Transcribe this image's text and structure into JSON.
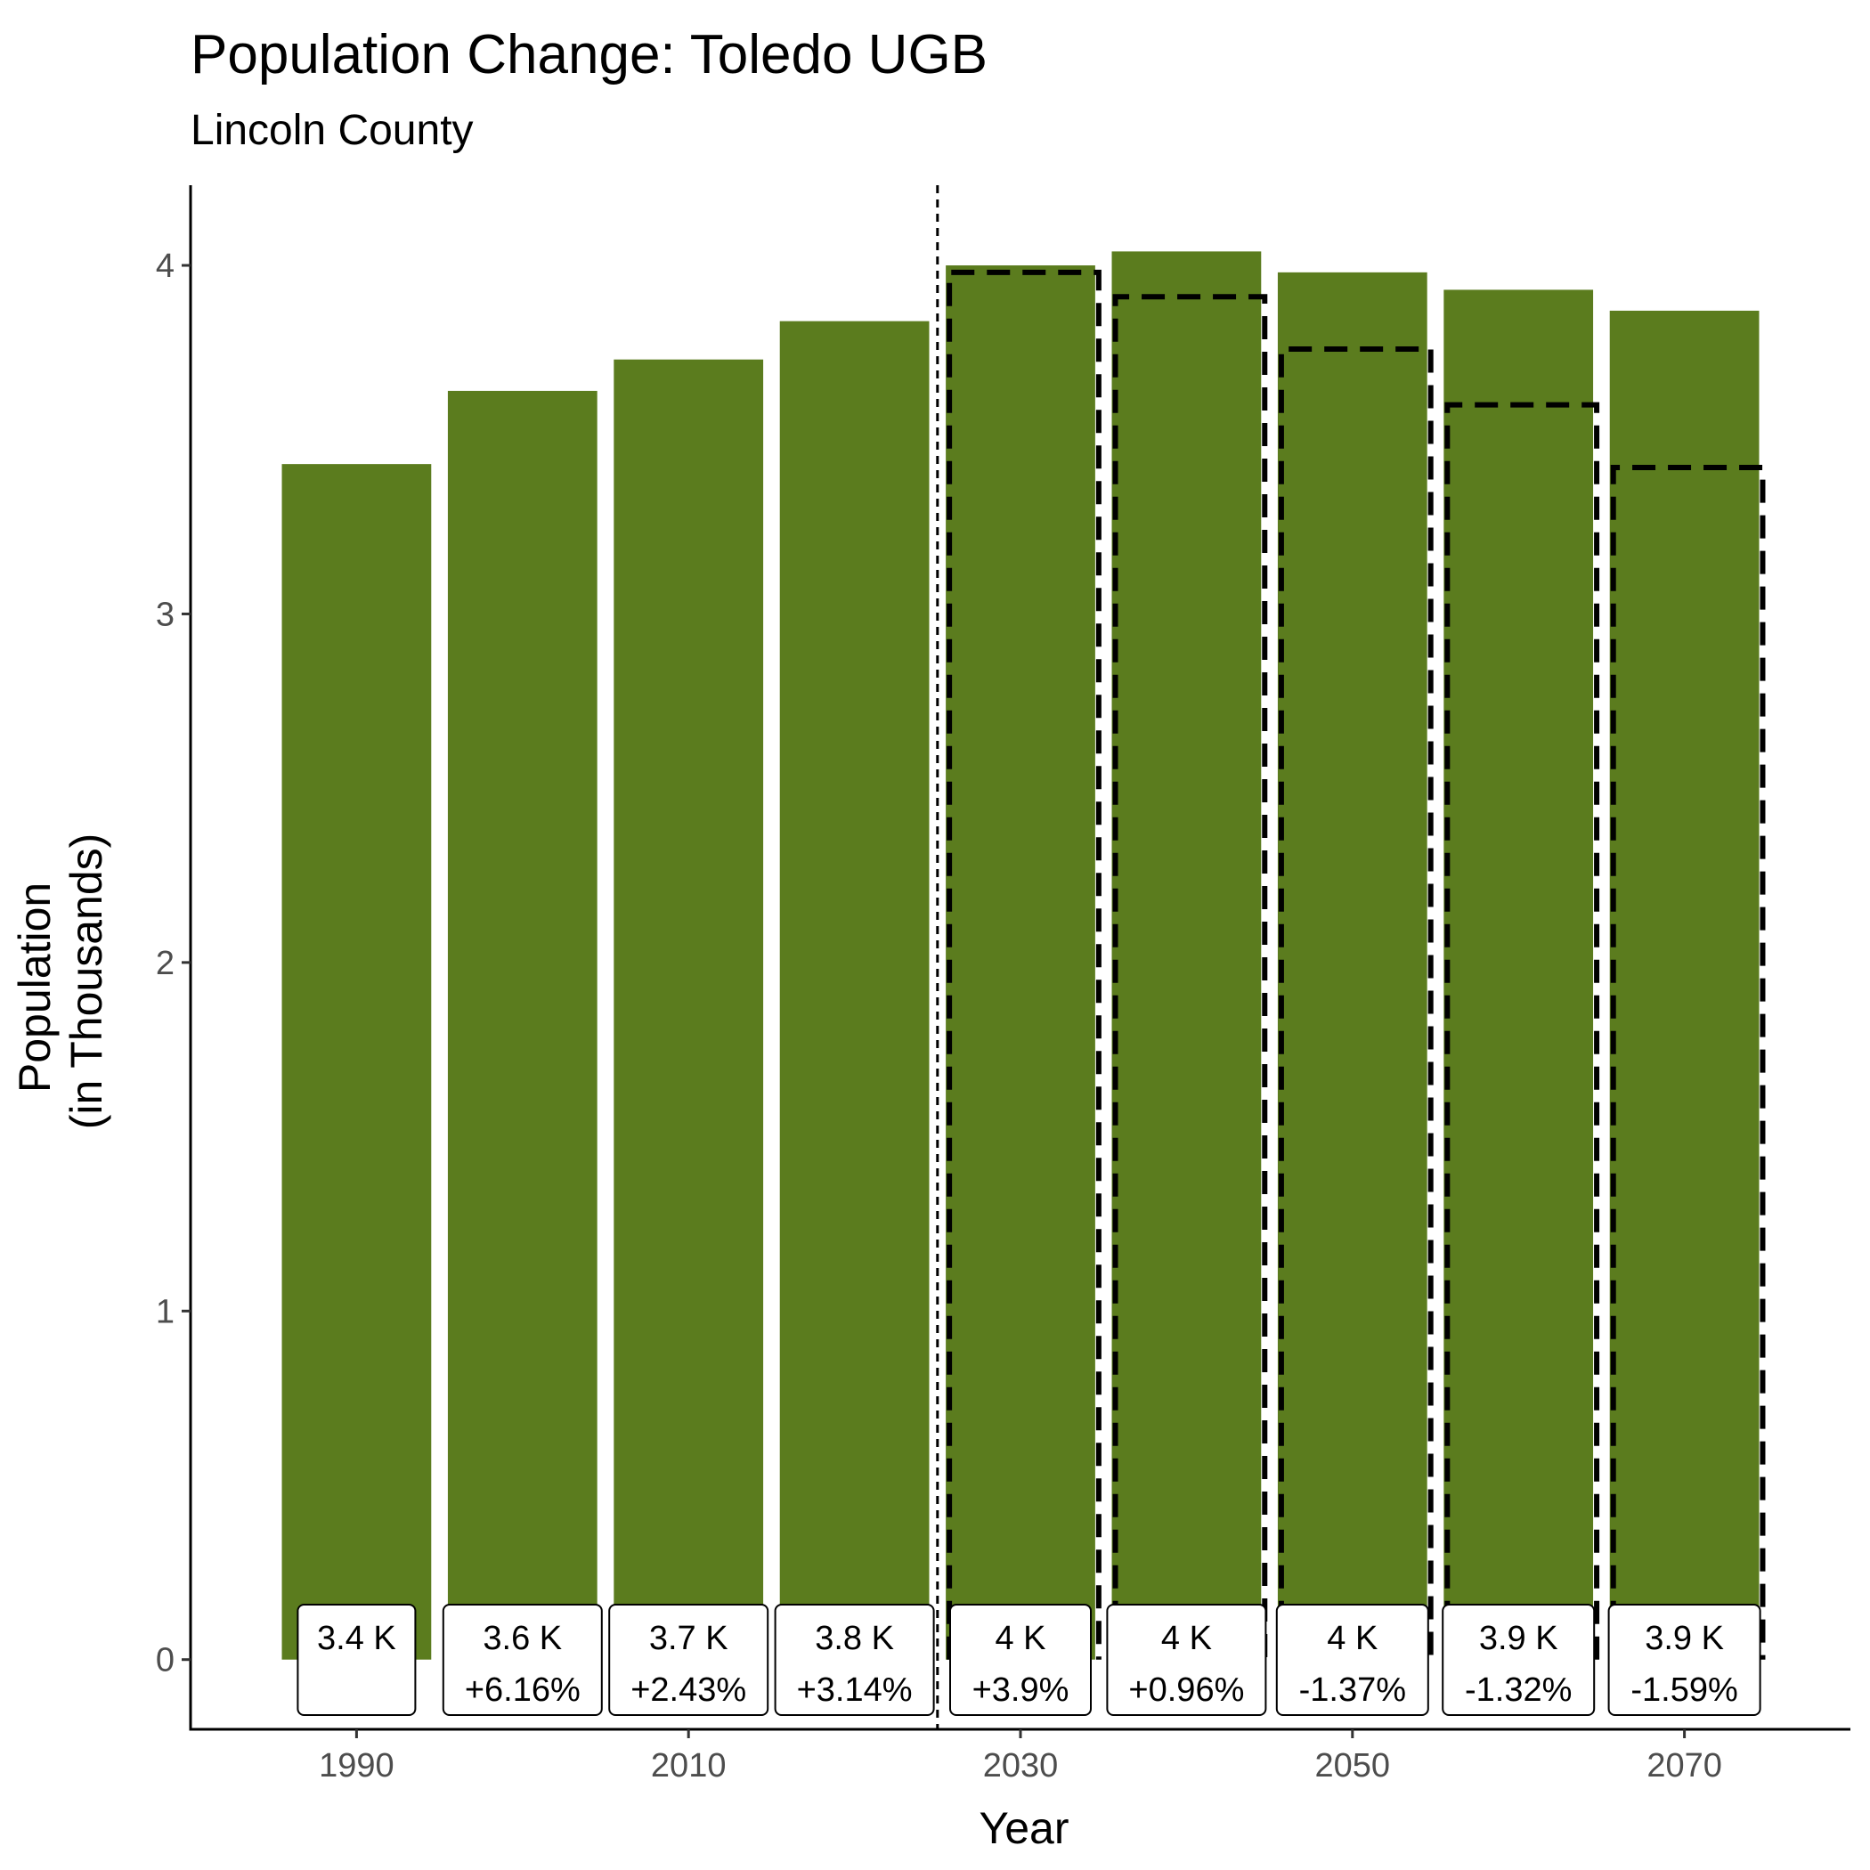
{
  "chart_data": {
    "type": "bar",
    "title": "Population Change: Toledo UGB",
    "subtitle": "Lincoln County",
    "xlabel": "Year",
    "ylabel": [
      "Population",
      "(in Thousands)"
    ],
    "x_ticks": [
      1990,
      2010,
      2030,
      2050,
      2070
    ],
    "y_ticks": [
      0,
      1,
      2,
      3,
      4
    ],
    "xlim": [
      1980,
      2080
    ],
    "ylim": [
      -0.2,
      4.23
    ],
    "bar_color": "#5b7c1e",
    "forecast_start_line": 2025,
    "series": [
      {
        "x": [
          1990,
          2000,
          2010,
          2020,
          2030,
          2040,
          2050,
          2060,
          2070
        ],
        "values": [
          3.43,
          3.64,
          3.73,
          3.84,
          4.0,
          4.04,
          3.98,
          3.93,
          3.87
        ]
      },
      {
        "style": "dashed-outline",
        "x": [
          2030,
          2040,
          2050,
          2060,
          2070
        ],
        "values": [
          3.98,
          3.91,
          3.76,
          3.6,
          3.42
        ]
      }
    ],
    "labels": [
      {
        "value": "3.4 K",
        "change": ""
      },
      {
        "value": "3.6 K",
        "change": "+6.16%"
      },
      {
        "value": "3.7 K",
        "change": "+2.43%"
      },
      {
        "value": "3.8 K",
        "change": "+3.14%"
      },
      {
        "value": "4 K",
        "change": "+3.9%"
      },
      {
        "value": "4 K",
        "change": "+0.96%"
      },
      {
        "value": "4 K",
        "change": "-1.37%"
      },
      {
        "value": "3.9 K",
        "change": "-1.32%"
      },
      {
        "value": "3.9 K",
        "change": "-1.59%"
      }
    ],
    "grid": false
  }
}
